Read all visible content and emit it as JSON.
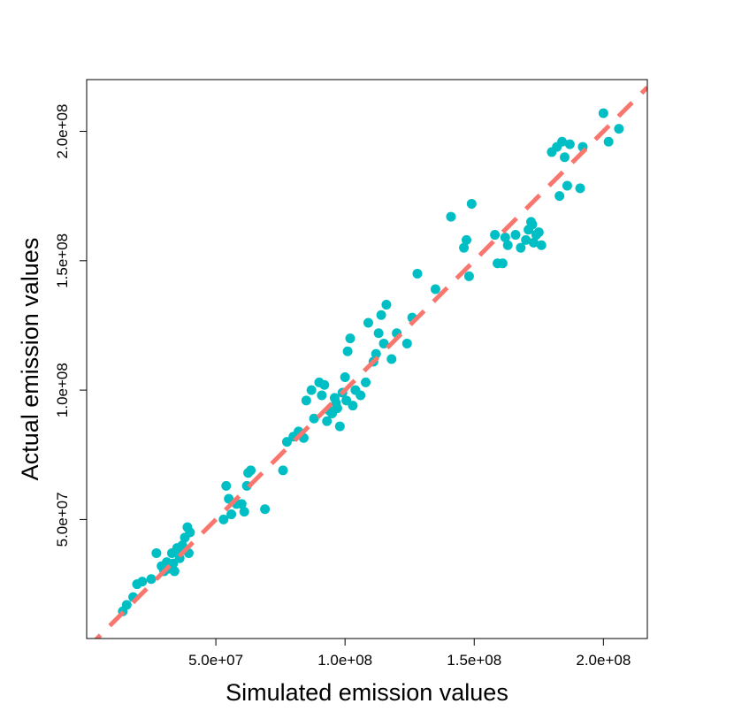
{
  "chart_data": {
    "type": "scatter",
    "title": "",
    "xlabel": "Simulated emission values",
    "ylabel": "Actual emission values",
    "xlim": [
      0,
      217000000
    ],
    "ylim": [
      4000000,
      220000000
    ],
    "x_ticks": [
      {
        "value": 50000000,
        "label": "5.0e+07"
      },
      {
        "value": 100000000,
        "label": "1.0e+08"
      },
      {
        "value": 150000000,
        "label": "1.5e+08"
      },
      {
        "value": 200000000,
        "label": "2.0e+08"
      }
    ],
    "y_ticks": [
      {
        "value": 50000000,
        "label": "5.0e+07"
      },
      {
        "value": 100000000,
        "label": "1.0e+08"
      },
      {
        "value": 150000000,
        "label": "1.5e+08"
      },
      {
        "value": 200000000,
        "label": "2.0e+08"
      }
    ],
    "grid": false,
    "point_color": "#00BFC4",
    "reference_line": {
      "slope": 1,
      "intercept": 0,
      "color": "#F8766D",
      "style": "dashed"
    },
    "points": [
      [
        14000000,
        14500000
      ],
      [
        15500000,
        17000000
      ],
      [
        18000000,
        20000000
      ],
      [
        19500000,
        25000000
      ],
      [
        21500000,
        26000000
      ],
      [
        25000000,
        27000000
      ],
      [
        27000000,
        37000000
      ],
      [
        29000000,
        32000000
      ],
      [
        30000000,
        30000000
      ],
      [
        31000000,
        33500000
      ],
      [
        32000000,
        31000000
      ],
      [
        33000000,
        37000000
      ],
      [
        34000000,
        30000000
      ],
      [
        35000000,
        39000000
      ],
      [
        36000000,
        35000000
      ],
      [
        37000000,
        40000000
      ],
      [
        38000000,
        43000000
      ],
      [
        39000000,
        47000000
      ],
      [
        40000000,
        45000000
      ],
      [
        39500000,
        37000000
      ],
      [
        53000000,
        50000000
      ],
      [
        54000000,
        63000000
      ],
      [
        55000000,
        58000000
      ],
      [
        56000000,
        52000000
      ],
      [
        58000000,
        56000000
      ],
      [
        60000000,
        56000000
      ],
      [
        61000000,
        53000000
      ],
      [
        62000000,
        63000000
      ],
      [
        62500000,
        68000000
      ],
      [
        63500000,
        69000000
      ],
      [
        69000000,
        54000000
      ],
      [
        76000000,
        69000000
      ],
      [
        77500000,
        80000000
      ],
      [
        80000000,
        82000000
      ],
      [
        82000000,
        84000000
      ],
      [
        84000000,
        81500000
      ],
      [
        85000000,
        96000000
      ],
      [
        87000000,
        100000000
      ],
      [
        88000000,
        89000000
      ],
      [
        90000000,
        103000000
      ],
      [
        91000000,
        98000000
      ],
      [
        92000000,
        102000000
      ],
      [
        93000000,
        88000000
      ],
      [
        94000000,
        92000000
      ],
      [
        95000000,
        91000000
      ],
      [
        96000000,
        97000000
      ],
      [
        97000000,
        93000000
      ],
      [
        98000000,
        86000000
      ],
      [
        99000000,
        99000000
      ],
      [
        100000000,
        105000000
      ],
      [
        101000000,
        115000000
      ],
      [
        102000000,
        120000000
      ],
      [
        103000000,
        94000000
      ],
      [
        104000000,
        100000000
      ],
      [
        106000000,
        98000000
      ],
      [
        108000000,
        103000000
      ],
      [
        109000000,
        126000000
      ],
      [
        111000000,
        111000000
      ],
      [
        112000000,
        114000000
      ],
      [
        113000000,
        122000000
      ],
      [
        114000000,
        129000000
      ],
      [
        115000000,
        118000000
      ],
      [
        116000000,
        133000000
      ],
      [
        118000000,
        112000000
      ],
      [
        120000000,
        122000000
      ],
      [
        124000000,
        118000000
      ],
      [
        126000000,
        128000000
      ],
      [
        128000000,
        145000000
      ],
      [
        135000000,
        139000000
      ],
      [
        141000000,
        167000000
      ],
      [
        146000000,
        155000000
      ],
      [
        147000000,
        158000000
      ],
      [
        148000000,
        144000000
      ],
      [
        149000000,
        172000000
      ],
      [
        158000000,
        160000000
      ],
      [
        159000000,
        149000000
      ],
      [
        161000000,
        149000000
      ],
      [
        162000000,
        159000000
      ],
      [
        163000000,
        156000000
      ],
      [
        166000000,
        160000000
      ],
      [
        168000000,
        155000000
      ],
      [
        170000000,
        158000000
      ],
      [
        171000000,
        162000000
      ],
      [
        172000000,
        165000000
      ],
      [
        173000000,
        157000000
      ],
      [
        174000000,
        160000000
      ],
      [
        175000000,
        161000000
      ],
      [
        176000000,
        156000000
      ],
      [
        180000000,
        192000000
      ],
      [
        182000000,
        194000000
      ],
      [
        183000000,
        175000000
      ],
      [
        184000000,
        196000000
      ],
      [
        185000000,
        190000000
      ],
      [
        186000000,
        179000000
      ],
      [
        187000000,
        195000000
      ],
      [
        191000000,
        178000000
      ],
      [
        192000000,
        194000000
      ],
      [
        200000000,
        207000000
      ],
      [
        202000000,
        196000000
      ],
      [
        206000000,
        201000000
      ],
      [
        172500000,
        164000000
      ],
      [
        96500000,
        95000000
      ],
      [
        100500000,
        96000000
      ],
      [
        33500000,
        33000000
      ],
      [
        36000000,
        38000000
      ]
    ]
  }
}
